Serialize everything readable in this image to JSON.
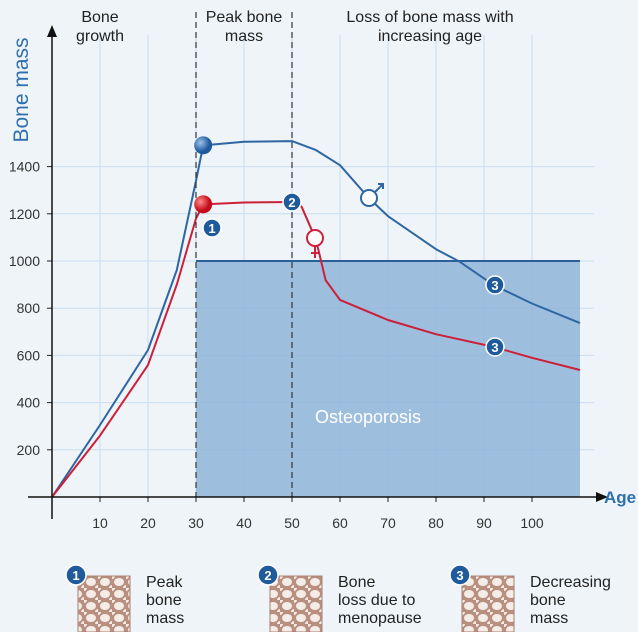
{
  "chart_data": {
    "type": "line",
    "y_label": "Bone mass",
    "x_label": "Age",
    "region_labels": [
      "Bone\ngrowth",
      "Peak bone\nmass",
      "Loss of bone mass with\nincreasing age"
    ],
    "region_bounds": [
      30,
      50
    ],
    "band": {
      "label": "Osteoporosis",
      "xrange": [
        30,
        110
      ],
      "yrange": [
        0,
        1000
      ],
      "color": "#8fb4d9"
    },
    "series": [
      {
        "color": "#2e66a3",
        "x": [
          0,
          10,
          20,
          26,
          30,
          31.5,
          40,
          50,
          55,
          60,
          66,
          70,
          80,
          85,
          92,
          100,
          110
        ],
        "values": [
          0,
          305,
          623,
          962,
          1340,
          1490,
          1505,
          1508,
          1470,
          1406,
          1267,
          1190,
          1050,
          996,
          898,
          820,
          737
        ]
      },
      {
        "color": "#cc1f3a",
        "x": [
          0,
          10,
          20,
          26,
          30,
          31.5,
          40,
          50,
          52,
          55,
          57,
          60,
          70,
          80,
          92,
          100,
          110
        ],
        "values": [
          0,
          260,
          559,
          900,
          1180,
          1240,
          1248,
          1250,
          1230,
          1090,
          919,
          835,
          750,
          690,
          636,
          590,
          538
        ]
      }
    ],
    "xlim": [
      0,
      115
    ],
    "ylim": [
      0,
      2000
    ],
    "xticks": [
      10,
      20,
      30,
      40,
      50,
      60,
      70,
      80,
      90,
      100
    ],
    "yticks": [
      200,
      400,
      600,
      800,
      1000,
      1200,
      1400
    ],
    "grid": true,
    "legend_items": [
      {
        "number": "1",
        "label": "Peak\nbone\nmass"
      },
      {
        "number": "2",
        "label": "Bone\nloss due to\nmenopause"
      },
      {
        "number": "3",
        "label": "Decreasing\nbone\nmass"
      }
    ]
  }
}
